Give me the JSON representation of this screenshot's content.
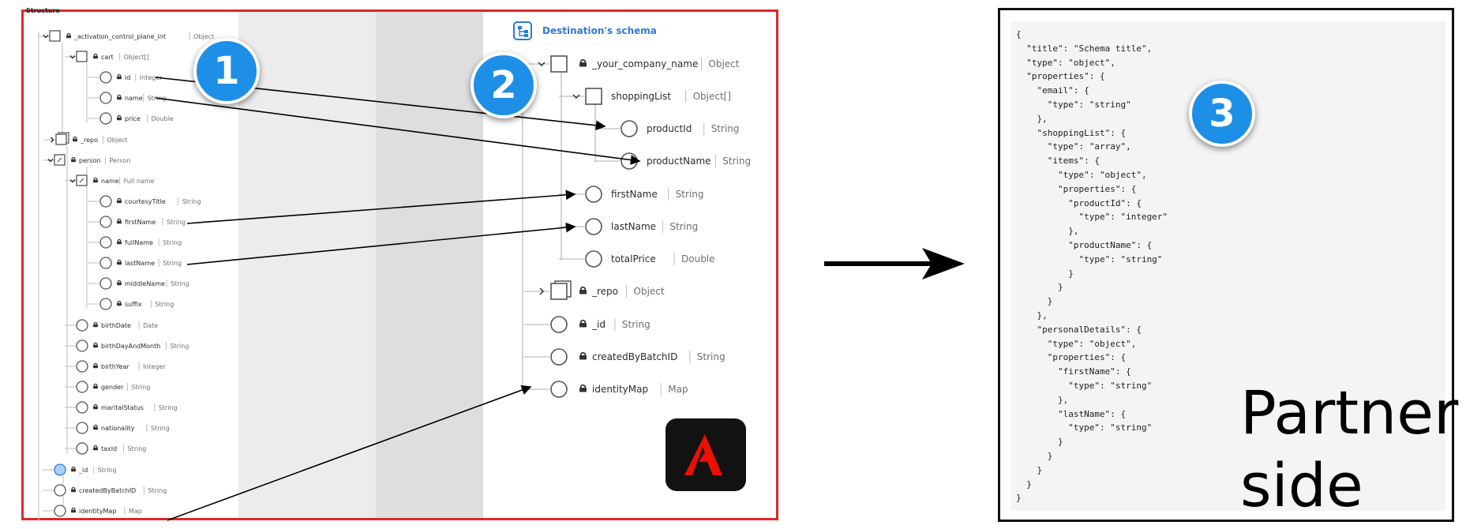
{
  "source_panel": {
    "title": "Structure",
    "rows": [
      {
        "label": "_activation_control_plane_int",
        "type": "Object"
      },
      {
        "label": "cart",
        "type": "Object[]"
      },
      {
        "label": "id",
        "type": "Integer"
      },
      {
        "label": "name",
        "type": "String"
      },
      {
        "label": "price",
        "type": "Double"
      },
      {
        "label": "_repo",
        "type": "Object"
      },
      {
        "label": "person",
        "type": "Person"
      },
      {
        "label": "name",
        "type": "Full name"
      },
      {
        "label": "courtesyTitle",
        "type": "String"
      },
      {
        "label": "firstName",
        "type": "String"
      },
      {
        "label": "fullName",
        "type": "String"
      },
      {
        "label": "lastName",
        "type": "String"
      },
      {
        "label": "middleName",
        "type": "String"
      },
      {
        "label": "suffix",
        "type": "String"
      },
      {
        "label": "birthDate",
        "type": "Date"
      },
      {
        "label": "birthDayAndMonth",
        "type": "String"
      },
      {
        "label": "birthYear",
        "type": "Integer"
      },
      {
        "label": "gender",
        "type": "String"
      },
      {
        "label": "maritalStatus",
        "type": "String"
      },
      {
        "label": "nationality",
        "type": "String"
      },
      {
        "label": "taxId",
        "type": "String"
      },
      {
        "label": "_id",
        "type": "String"
      },
      {
        "label": "createdByBatchID",
        "type": "String"
      },
      {
        "label": "identityMap",
        "type": "Map"
      }
    ]
  },
  "destination_panel": {
    "title": "Destination's schema",
    "rows": [
      {
        "label": "_your_company_name",
        "type": "Object"
      },
      {
        "label": "shoppingList",
        "type": "Object[]"
      },
      {
        "label": "productId",
        "type": "String"
      },
      {
        "label": "productName",
        "type": "String"
      },
      {
        "label": "firstName",
        "type": "String"
      },
      {
        "label": "lastName",
        "type": "String"
      },
      {
        "label": "totalPrice",
        "type": "Double"
      },
      {
        "label": "_repo",
        "type": "Object"
      },
      {
        "label": "_id",
        "type": "String"
      },
      {
        "label": "createdByBatchID",
        "type": "String"
      },
      {
        "label": "identityMap",
        "type": "Map"
      }
    ]
  },
  "badges": [
    "1",
    "2",
    "3"
  ],
  "json_code": "{\n  \"title\": \"Schema title\",\n  \"type\": \"object\",\n  \"properties\": {\n    \"email\": {\n      \"type\": \"string\"\n    },\n    \"shoppingList\": {\n      \"type\": \"array\",\n      \"items\": {\n        \"type\": \"object\",\n        \"properties\": {\n          \"productId\": {\n            \"type\": \"integer\"\n          },\n          \"productName\": {\n            \"type\": \"string\"\n          }\n        }\n      }\n    },\n    \"personalDetails\": {\n      \"type\": \"object\",\n      \"properties\": {\n        \"firstName\": {\n          \"type\": \"string\"\n        },\n        \"lastName\": {\n          \"type\": \"string\"\n        }\n      }\n    }\n  }\n}",
  "partner_label": "Partner side",
  "colors": {
    "frame": "#e0262c",
    "badge": "#1e8fe6",
    "dest_title": "#2d7ad6",
    "logo_bg": "#121212",
    "logo_mark": "#eb1000",
    "json_bg": "#f4f4f4"
  },
  "icons": {
    "destination_title": "schema-tree-icon",
    "logo": "adobe-logo",
    "lock": "lock-icon",
    "expand": "chevron-icon"
  }
}
